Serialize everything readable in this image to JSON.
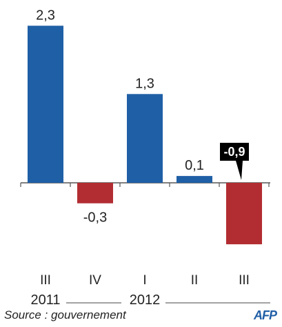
{
  "chart_data": {
    "type": "bar",
    "categories": [
      "III",
      "IV",
      "I",
      "II",
      "III"
    ],
    "values": [
      2.3,
      -0.3,
      1.3,
      0.1,
      -0.9
    ],
    "value_labels": [
      "2,3",
      "-0,3",
      "1,3",
      "0,1",
      "-0,9"
    ],
    "year_groups": [
      {
        "label": "2011",
        "start_index": 0,
        "end_index": 1
      },
      {
        "label": "2012",
        "start_index": 2,
        "end_index": 4
      }
    ],
    "highlighted_index": 4,
    "colors": {
      "positive": "#1f5fa6",
      "negative": "#b22d32",
      "axis": "#555555",
      "highlight_label_bg": "#000000",
      "highlight_label_text": "#ffffff"
    },
    "title": "",
    "xlabel": "",
    "ylabel": "",
    "ylim": [
      -1.1,
      2.6
    ],
    "grid": false,
    "legend": "none"
  },
  "footer": {
    "source": "Source : gouvernement",
    "logo": "AFP"
  }
}
